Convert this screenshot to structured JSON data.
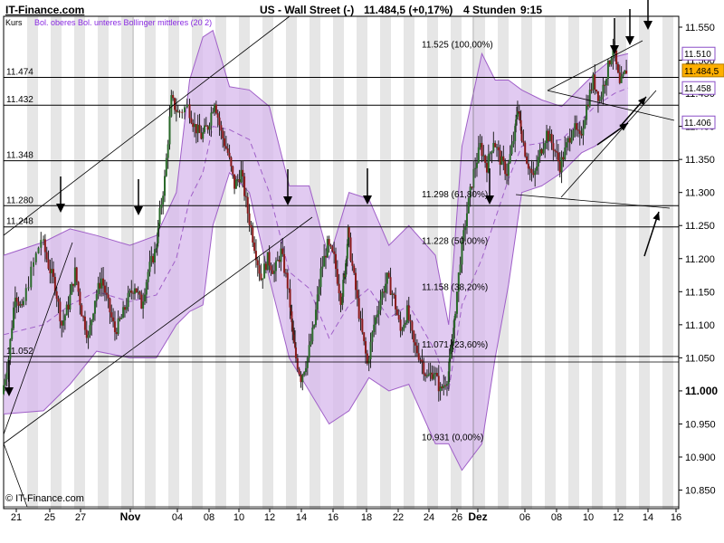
{
  "header": {
    "brand": "IT-Finance.com",
    "instrument": "US - Wall Street (-)",
    "quote": "11.484,5 (+0,17%)",
    "timeframe": "4 Stunden",
    "time": "9:15"
  },
  "sublegend": {
    "kurs": "Kurs",
    "bollinger": "Bol. oberes Bol. unteres Bollinger mittleres (20 2)"
  },
  "footer": {
    "copyright": "© IT-Finance.com"
  },
  "colors": {
    "band_fill": "#d7b8ec",
    "band_line": "#a060c8",
    "candle_up": "#2a6a2a",
    "candle_down": "#8a1a1a",
    "stripe": "#e6e6e6",
    "current_price_bg": "#ffb000",
    "price_box_bg": "#ffffff",
    "price_box_border": "#8a4fc7",
    "legend_purple": "#8a2be2"
  },
  "chart_data": {
    "type": "candlestick",
    "title": "US - Wall Street (-)",
    "ylim": [
      10.82,
      11.56
    ],
    "y_ticks": [
      "11.550",
      "11.500",
      "11.450",
      "11.400",
      "11.350",
      "11.300",
      "11.250",
      "11.200",
      "11.150",
      "11.100",
      "11.050",
      "11.000",
      "10.950",
      "10.900",
      "10.850"
    ],
    "x_tick_labels": [
      "21",
      "25",
      "27",
      "Nov",
      "04",
      "08",
      "10",
      "12",
      "14",
      "16",
      "18",
      "22",
      "24",
      "26",
      "Dez",
      "06",
      "08",
      "10",
      "12",
      "14",
      "16"
    ],
    "horizontal_levels": [
      {
        "label": "11.474",
        "value": 11.474
      },
      {
        "label": "11.432",
        "value": 11.432
      },
      {
        "label": "11.348",
        "value": 11.348
      },
      {
        "label": "11.280",
        "value": 11.28
      },
      {
        "label": "11.248",
        "value": 11.248
      },
      {
        "label": "11.052",
        "value": 11.052
      }
    ],
    "fibonacci": [
      {
        "label": "11.525 (100,00%)",
        "value": 11.525
      },
      {
        "label": "11.298 (61,80%)",
        "value": 11.298
      },
      {
        "label": "11.228 (50,00%)",
        "value": 11.228
      },
      {
        "label": "11.158 (38,20%)",
        "value": 11.158
      },
      {
        "label": "11.071 (23,60%)",
        "value": 11.071
      },
      {
        "label": "10.931 (0,00%)",
        "value": 10.931
      }
    ],
    "right_badges": [
      {
        "label": "11.510",
        "value": 11.51,
        "kind": "upper"
      },
      {
        "label": "11.484,5",
        "value": 11.4845,
        "kind": "current"
      },
      {
        "label": "11.458",
        "value": 11.458,
        "kind": "middle"
      },
      {
        "label": "11.406",
        "value": 11.406,
        "kind": "lower"
      }
    ],
    "bollinger": {
      "period": 20,
      "deviation": 2,
      "keypoints": [
        [
          0,
          11.205,
          10.965,
          11.085
        ],
        [
          0.06,
          11.225,
          10.97,
          11.1
        ],
        [
          0.1,
          11.245,
          11.01,
          11.13
        ],
        [
          0.14,
          11.235,
          11.06,
          11.15
        ],
        [
          0.19,
          11.22,
          11.05,
          11.135
        ],
        [
          0.23,
          11.235,
          11.05,
          11.145
        ],
        [
          0.26,
          11.3,
          11.1,
          11.2
        ],
        [
          0.28,
          11.47,
          11.12,
          11.29
        ],
        [
          0.3,
          11.535,
          11.13,
          11.33
        ],
        [
          0.315,
          11.545,
          11.25,
          11.4
        ],
        [
          0.34,
          11.46,
          11.33,
          11.395
        ],
        [
          0.37,
          11.455,
          11.3,
          11.38
        ],
        [
          0.4,
          11.43,
          11.17,
          11.3
        ],
        [
          0.43,
          11.31,
          11.05,
          11.18
        ],
        [
          0.46,
          11.31,
          11.0,
          11.155
        ],
        [
          0.49,
          11.2,
          10.95,
          11.08
        ],
        [
          0.52,
          11.3,
          10.97,
          11.13
        ],
        [
          0.55,
          11.29,
          11.02,
          11.155
        ],
        [
          0.58,
          11.22,
          11.0,
          11.11
        ],
        [
          0.61,
          11.25,
          11.01,
          11.13
        ],
        [
          0.65,
          11.205,
          10.92,
          11.06
        ],
        [
          0.67,
          11.1,
          10.92,
          11.0
        ],
        [
          0.69,
          11.37,
          10.88,
          11.13
        ],
        [
          0.72,
          11.51,
          10.92,
          11.2
        ],
        [
          0.74,
          11.47,
          11.05,
          11.26
        ],
        [
          0.76,
          11.47,
          11.16,
          11.32
        ],
        [
          0.78,
          11.455,
          11.3,
          11.37
        ],
        [
          0.81,
          11.44,
          11.31,
          11.375
        ],
        [
          0.84,
          11.43,
          11.33,
          11.38
        ],
        [
          0.87,
          11.46,
          11.36,
          11.41
        ],
        [
          0.89,
          11.48,
          11.37,
          11.43
        ],
        [
          0.92,
          11.505,
          11.39,
          11.45
        ],
        [
          0.94,
          11.51,
          11.406,
          11.458
        ]
      ]
    },
    "price_path": [
      [
        0,
        10.995
      ],
      [
        0.01,
        11.05
      ],
      [
        0.02,
        11.15
      ],
      [
        0.03,
        11.12
      ],
      [
        0.045,
        11.18
      ],
      [
        0.06,
        11.23
      ],
      [
        0.07,
        11.19
      ],
      [
        0.08,
        11.16
      ],
      [
        0.09,
        11.1
      ],
      [
        0.1,
        11.13
      ],
      [
        0.11,
        11.18
      ],
      [
        0.12,
        11.12
      ],
      [
        0.13,
        11.08
      ],
      [
        0.14,
        11.14
      ],
      [
        0.15,
        11.17
      ],
      [
        0.16,
        11.13
      ],
      [
        0.17,
        11.09
      ],
      [
        0.18,
        11.11
      ],
      [
        0.19,
        11.14
      ],
      [
        0.2,
        11.16
      ],
      [
        0.21,
        11.13
      ],
      [
        0.22,
        11.18
      ],
      [
        0.23,
        11.21
      ],
      [
        0.235,
        11.25
      ],
      [
        0.245,
        11.32
      ],
      [
        0.255,
        11.44
      ],
      [
        0.265,
        11.42
      ],
      [
        0.28,
        11.43
      ],
      [
        0.29,
        11.4
      ],
      [
        0.3,
        11.385
      ],
      [
        0.31,
        11.4
      ],
      [
        0.32,
        11.44
      ],
      [
        0.33,
        11.39
      ],
      [
        0.34,
        11.36
      ],
      [
        0.35,
        11.31
      ],
      [
        0.36,
        11.33
      ],
      [
        0.37,
        11.27
      ],
      [
        0.38,
        11.22
      ],
      [
        0.39,
        11.17
      ],
      [
        0.4,
        11.2
      ],
      [
        0.41,
        11.18
      ],
      [
        0.42,
        11.21
      ],
      [
        0.43,
        11.16
      ],
      [
        0.435,
        11.1
      ],
      [
        0.44,
        11.06
      ],
      [
        0.45,
        11.02
      ],
      [
        0.46,
        11.05
      ],
      [
        0.47,
        11.1
      ],
      [
        0.48,
        11.18
      ],
      [
        0.49,
        11.22
      ],
      [
        0.5,
        11.2
      ],
      [
        0.51,
        11.14
      ],
      [
        0.515,
        11.18
      ],
      [
        0.52,
        11.24
      ],
      [
        0.53,
        11.17
      ],
      [
        0.54,
        11.1
      ],
      [
        0.55,
        11.04
      ],
      [
        0.56,
        11.1
      ],
      [
        0.57,
        11.14
      ],
      [
        0.58,
        11.17
      ],
      [
        0.59,
        11.14
      ],
      [
        0.6,
        11.09
      ],
      [
        0.61,
        11.12
      ],
      [
        0.62,
        11.07
      ],
      [
        0.63,
        11.05
      ],
      [
        0.64,
        11.02
      ],
      [
        0.65,
        11.03
      ],
      [
        0.66,
        11.0
      ],
      [
        0.67,
        11.02
      ],
      [
        0.675,
        11.06
      ],
      [
        0.68,
        11.1
      ],
      [
        0.69,
        11.2
      ],
      [
        0.7,
        11.27
      ],
      [
        0.71,
        11.33
      ],
      [
        0.72,
        11.37
      ],
      [
        0.73,
        11.34
      ],
      [
        0.74,
        11.38
      ],
      [
        0.75,
        11.35
      ],
      [
        0.76,
        11.33
      ],
      [
        0.77,
        11.38
      ],
      [
        0.775,
        11.43
      ],
      [
        0.78,
        11.4
      ],
      [
        0.79,
        11.35
      ],
      [
        0.8,
        11.32
      ],
      [
        0.81,
        11.36
      ],
      [
        0.82,
        11.39
      ],
      [
        0.83,
        11.37
      ],
      [
        0.84,
        11.34
      ],
      [
        0.85,
        11.37
      ],
      [
        0.86,
        11.4
      ],
      [
        0.87,
        11.38
      ],
      [
        0.88,
        11.43
      ],
      [
        0.89,
        11.47
      ],
      [
        0.9,
        11.44
      ],
      [
        0.91,
        11.48
      ],
      [
        0.92,
        11.52
      ],
      [
        0.93,
        11.46
      ],
      [
        0.94,
        11.485
      ]
    ]
  }
}
